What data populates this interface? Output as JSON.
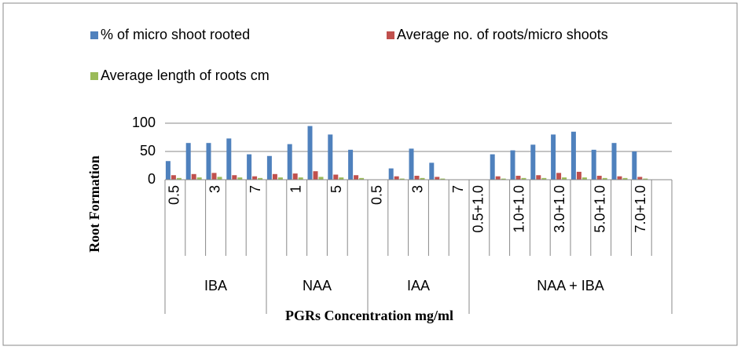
{
  "chart_data": {
    "type": "bar",
    "x_label": "PGRs Concentration mg/ml",
    "y_label": "Root Formation",
    "groups": [
      {
        "label": "IBA",
        "categories": [
          "0.5",
          null,
          "3",
          null,
          "7"
        ]
      },
      {
        "label": "NAA",
        "categories": [
          null,
          "1",
          null,
          "5",
          null
        ]
      },
      {
        "label": "IAA",
        "categories": [
          "0.5",
          null,
          "3",
          null,
          "7"
        ]
      },
      {
        "label": "NAA + IBA",
        "categories": [
          "0.5+1.0",
          null,
          "1.0+1.0",
          null,
          "3.0+1.0",
          null,
          "5.0+1.0",
          null,
          "7.0+1.0",
          null
        ]
      }
    ],
    "series": [
      {
        "name": "% of micro shoot rooted",
        "color": "#4f81bd",
        "values": [
          33,
          65,
          65,
          73,
          45,
          42,
          63,
          95,
          80,
          53,
          0,
          20,
          55,
          30,
          0,
          0,
          45,
          52,
          62,
          80,
          85,
          53,
          65,
          50,
          0
        ]
      },
      {
        "name": "Average no. of roots/micro shoots",
        "color": "#c0504d",
        "values": [
          8,
          10,
          12,
          8,
          6,
          10,
          11,
          15,
          9,
          8,
          0,
          6,
          7,
          5,
          0,
          0,
          6,
          7,
          8,
          12,
          14,
          7,
          6,
          5,
          0
        ]
      },
      {
        "name": "Average length of roots cm",
        "color": "#9bbb59",
        "values": [
          3,
          4,
          5,
          4,
          3,
          4,
          4,
          5,
          4,
          3,
          0,
          2,
          3,
          2,
          0,
          0,
          2,
          3,
          3,
          4,
          4,
          3,
          3,
          2,
          0
        ]
      }
    ],
    "ylim": [
      0,
      100
    ],
    "yticks": [
      0,
      50,
      100
    ],
    "grid": true
  }
}
